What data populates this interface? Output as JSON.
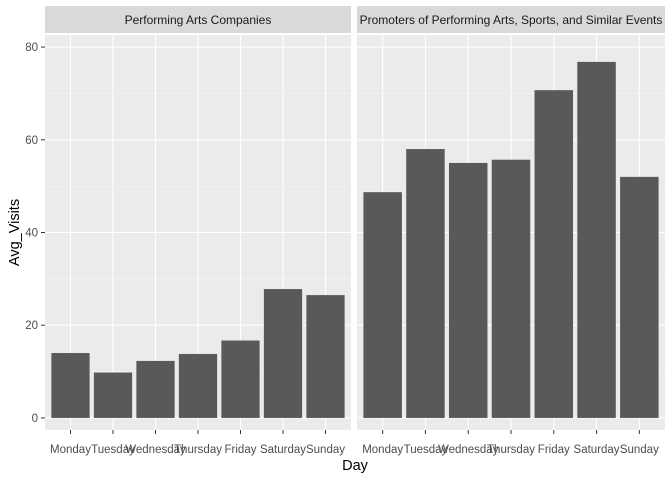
{
  "chart_data": {
    "type": "bar",
    "xlabel": "Day",
    "ylabel": "Avg_Visits",
    "ylim": [
      0,
      80
    ],
    "yticks": [
      0,
      20,
      40,
      60,
      80
    ],
    "categories": [
      "Monday",
      "Tuesday",
      "Wednesday",
      "Thursday",
      "Friday",
      "Saturday",
      "Sunday"
    ],
    "grid": true,
    "panels": [
      {
        "title": "Performing Arts Companies",
        "values": [
          14.0,
          9.8,
          12.3,
          13.8,
          16.7,
          27.8,
          26.5
        ]
      },
      {
        "title": "Promoters of Performing Arts, Sports, and Similar Events",
        "values": [
          48.7,
          58.0,
          55.0,
          55.7,
          70.7,
          76.8,
          52.0
        ]
      }
    ],
    "colors": {
      "bar": "#595959",
      "panel_bg": "#ebebeb",
      "strip_bg": "#d9d9d9",
      "grid": "#ffffff"
    }
  }
}
